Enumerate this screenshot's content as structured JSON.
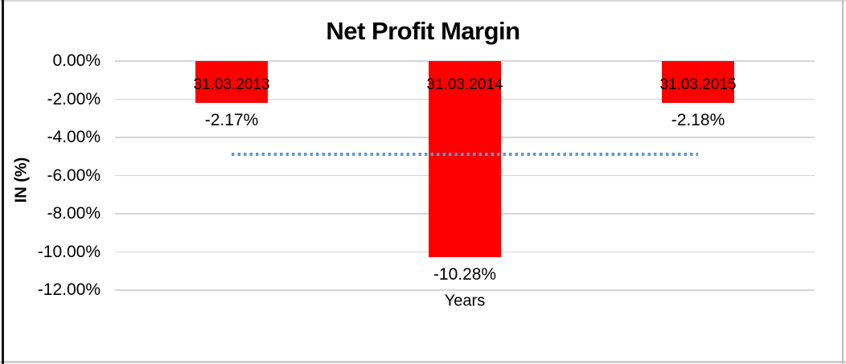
{
  "chart_data": {
    "type": "bar",
    "title": "Net Profit Margin",
    "xlabel": "Years",
    "ylabel": "IN (%)",
    "categories": [
      "31.03.2013",
      "31.03.2014",
      "31.03.2015"
    ],
    "values": [
      -2.17,
      -10.28,
      -2.18
    ],
    "data_labels": [
      "-2.17%",
      "-10.28%",
      "-2.18%"
    ],
    "yticks": [
      "0.00%",
      "-2.00%",
      "-4.00%",
      "-6.00%",
      "-8.00%",
      "-10.00%",
      "-12.00%"
    ],
    "ylim": [
      -12,
      0
    ],
    "grid": true,
    "legend": "none",
    "bar_color": "#ff0000",
    "label_color": "#000000",
    "gridline_color": "#d6d6d6",
    "trendline": {
      "style": "dotted",
      "color": "#5b9bd5",
      "value": -4.88,
      "from_category_index": 0,
      "to_category_index": 2
    }
  }
}
